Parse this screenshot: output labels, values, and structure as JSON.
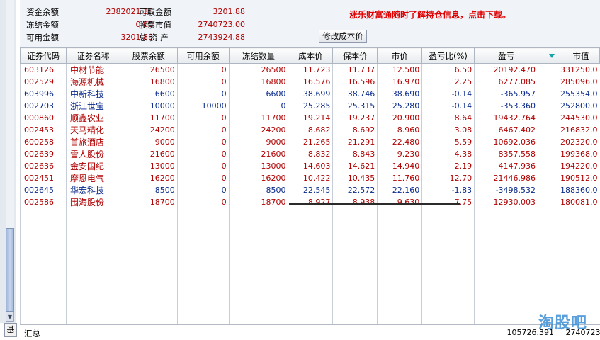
{
  "side": {
    "tab_label": "基"
  },
  "account": {
    "fund_balance_label": "资金余额",
    "fund_balance": "2382021.35",
    "withdrawable_label": "可取金额",
    "withdrawable": "3201.88",
    "frozen_label": "冻结金额",
    "frozen": "0.00",
    "stock_value_label": "股票市值",
    "stock_value": "2740723.00",
    "available_label": "可用金额",
    "available": "3201.88",
    "total_assets_label": "总 资 产",
    "total_assets": "2743924.88"
  },
  "notice": "涨乐财富通随时了解持仓信息，点击下载。",
  "modify_cost_label": "修改成本价",
  "table": {
    "headers": [
      "证券代码",
      "证券名称",
      "股票余额",
      "可用余额",
      "冻结数量",
      "成本价",
      "保本价",
      "市价",
      "盈亏比(%)",
      "盈亏",
      "市值"
    ],
    "rows": [
      [
        "603126",
        "中材节能",
        "26500",
        "0",
        "26500",
        "11.723",
        "11.737",
        "12.500",
        "6.50",
        "20192.470",
        "331250.0"
      ],
      [
        "002529",
        "海源机械",
        "16800",
        "0",
        "16800",
        "16.576",
        "16.596",
        "16.970",
        "2.25",
        "6277.085",
        "285096.0"
      ],
      [
        "603996",
        "中新科技",
        "6600",
        "0",
        "6600",
        "38.699",
        "38.746",
        "38.690",
        "-0.14",
        "-365.957",
        "255354.0"
      ],
      [
        "002703",
        "浙江世宝",
        "10000",
        "10000",
        "0",
        "25.285",
        "25.315",
        "25.280",
        "-0.14",
        "-353.360",
        "252800.0"
      ],
      [
        "000860",
        "顺鑫农业",
        "11700",
        "0",
        "11700",
        "19.214",
        "19.237",
        "20.900",
        "8.64",
        "19432.764",
        "244530.0"
      ],
      [
        "002453",
        "天马精化",
        "24200",
        "0",
        "24200",
        "8.682",
        "8.692",
        "8.960",
        "3.08",
        "6467.402",
        "216832.0"
      ],
      [
        "600258",
        "首旅酒店",
        "9000",
        "0",
        "9000",
        "21.265",
        "21.291",
        "22.480",
        "5.59",
        "10692.036",
        "202320.0"
      ],
      [
        "002639",
        "雪人股份",
        "21600",
        "0",
        "21600",
        "8.832",
        "8.843",
        "9.230",
        "4.38",
        "8357.558",
        "199368.0"
      ],
      [
        "002636",
        "金安国纪",
        "13000",
        "0",
        "13000",
        "14.603",
        "14.621",
        "14.940",
        "2.19",
        "4147.936",
        "194220.0"
      ],
      [
        "002451",
        "摩恩电气",
        "16200",
        "0",
        "16200",
        "10.422",
        "10.435",
        "11.760",
        "12.70",
        "21446.986",
        "190512.0"
      ],
      [
        "002645",
        "华宏科技",
        "8500",
        "0",
        "8500",
        "22.545",
        "22.572",
        "22.160",
        "-1.83",
        "-3498.532",
        "188360.0"
      ],
      [
        "002586",
        "围海股份",
        "18700",
        "0",
        "18700",
        "8.927",
        "8.938",
        "9.630",
        "7.75",
        "12930.003",
        "180081.0"
      ]
    ],
    "row_trend": [
      "up",
      "up",
      "down",
      "down",
      "up",
      "up",
      "up",
      "up",
      "up",
      "up",
      "down",
      "up"
    ]
  },
  "totals": {
    "label": "汇总",
    "pnl": "105726.391",
    "market_value": "2740723.0"
  },
  "watermark": "淘股吧",
  "colors": {
    "gain": "#b00000",
    "loss": "#0a2a8a",
    "notice": "#e00000",
    "panel_bg": "#f0f3f8"
  },
  "icons": {
    "sort": "sort-desc-icon",
    "scroll_down": "scroll-down-arrow-icon"
  }
}
